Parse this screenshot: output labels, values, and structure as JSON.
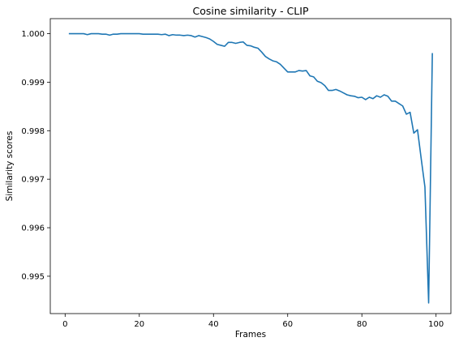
{
  "chart_data": {
    "type": "line",
    "title": "Cosine similarity - CLIP",
    "xlabel": "Frames",
    "ylabel": "Similarity scores",
    "xlim": [
      -4.0,
      104.0
    ],
    "ylim": [
      0.99423,
      1.00031
    ],
    "xticks": [
      0,
      20,
      40,
      60,
      80,
      100
    ],
    "yticks": [
      0.995,
      0.996,
      0.997,
      0.998,
      0.999,
      1.0
    ],
    "ytick_labels": [
      "0.995",
      "0.996",
      "0.997",
      "0.998",
      "0.999",
      "1.000"
    ],
    "grid": false,
    "legend": "none",
    "line_color": "#1f77b4",
    "series": [
      {
        "x": [
          1,
          2,
          3,
          4,
          5,
          6,
          7,
          8,
          9,
          10,
          11,
          12,
          13,
          14,
          15,
          16,
          17,
          18,
          19,
          20,
          21,
          22,
          23,
          24,
          25,
          26,
          27,
          28,
          29,
          30,
          31,
          32,
          33,
          34,
          35,
          36,
          37,
          38,
          39,
          40,
          41,
          42,
          43,
          44,
          45,
          46,
          47,
          48,
          49,
          50,
          51,
          52,
          53,
          54,
          55,
          56,
          57,
          58,
          59,
          60,
          61,
          62,
          63,
          64,
          65,
          66,
          67,
          68,
          69,
          70,
          71,
          72,
          73,
          74,
          75,
          76,
          77,
          78,
          79,
          80,
          81,
          82,
          83,
          84,
          85,
          86,
          87,
          88,
          89,
          90,
          91,
          92,
          93,
          94,
          95,
          96,
          97,
          98,
          99
        ],
        "values": [
          1.0,
          1.0,
          1.0,
          1.0,
          1.0,
          0.99998,
          1.0,
          1.0,
          1.0,
          0.99999,
          0.99999,
          0.99997,
          0.99999,
          0.99999,
          1.0,
          1.0,
          1.0,
          1.0,
          1.0,
          1.0,
          0.99999,
          0.99999,
          0.99999,
          0.99999,
          0.99999,
          0.99998,
          0.99999,
          0.99996,
          0.99998,
          0.99997,
          0.99997,
          0.99996,
          0.99997,
          0.99996,
          0.99993,
          0.99996,
          0.99994,
          0.99992,
          0.99989,
          0.99984,
          0.99978,
          0.99976,
          0.99974,
          0.99982,
          0.99982,
          0.9998,
          0.99982,
          0.99983,
          0.99976,
          0.99975,
          0.99972,
          0.9997,
          0.99962,
          0.99953,
          0.99948,
          0.99944,
          0.99942,
          0.99937,
          0.99929,
          0.99921,
          0.99921,
          0.99921,
          0.99924,
          0.99923,
          0.99924,
          0.99913,
          0.99911,
          0.99902,
          0.99899,
          0.99893,
          0.99883,
          0.99883,
          0.99885,
          0.99882,
          0.99878,
          0.99874,
          0.99872,
          0.99871,
          0.99868,
          0.99869,
          0.99864,
          0.99869,
          0.99866,
          0.99872,
          0.99869,
          0.99874,
          0.99871,
          0.99861,
          0.99861,
          0.99856,
          0.99851,
          0.99834,
          0.99838,
          0.99795,
          0.99802,
          0.99742,
          0.99684,
          0.99445,
          0.9996
        ]
      }
    ]
  }
}
